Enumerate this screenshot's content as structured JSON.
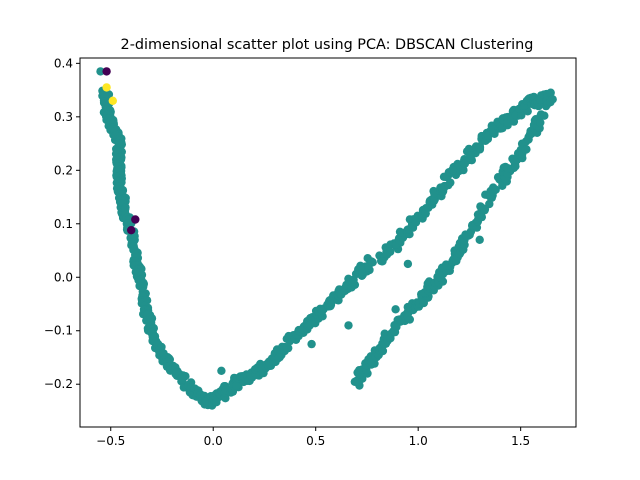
{
  "chart_data": {
    "type": "scatter",
    "title": "2-dimensional scatter plot using PCA: DBSCAN Clustering",
    "xlabel": "",
    "ylabel": "",
    "xlim": [
      -0.65,
      1.77
    ],
    "ylim": [
      -0.28,
      0.41
    ],
    "x_ticks": [
      -0.5,
      0.0,
      0.5,
      1.0,
      1.5
    ],
    "x_tick_labels": [
      "−0.5",
      "0.0",
      "0.5",
      "1.0",
      "1.5"
    ],
    "y_ticks": [
      -0.2,
      -0.1,
      0.0,
      0.1,
      0.2,
      0.3,
      0.4
    ],
    "y_tick_labels": [
      "−0.2",
      "−0.1",
      "0.0",
      "0.1",
      "0.2",
      "0.3",
      "0.4"
    ],
    "grid": false,
    "legend": "none",
    "colors": {
      "cluster_0": "#21918c",
      "cluster_1": "#fde725",
      "noise": "#440154"
    },
    "series": [
      {
        "color": "#21918c",
        "trace": [
          [
            -0.55,
            0.385
          ],
          [
            -0.53,
            0.345
          ],
          [
            -0.52,
            0.33
          ],
          [
            -0.52,
            0.31
          ],
          [
            -0.51,
            0.3
          ],
          [
            -0.49,
            0.285
          ],
          [
            -0.47,
            0.27
          ],
          [
            -0.46,
            0.255
          ],
          [
            -0.46,
            0.24
          ],
          [
            -0.46,
            0.22
          ],
          [
            -0.46,
            0.2
          ],
          [
            -0.46,
            0.18
          ],
          [
            -0.45,
            0.16
          ],
          [
            -0.44,
            0.14
          ],
          [
            -0.43,
            0.12
          ],
          [
            -0.41,
            0.1
          ],
          [
            -0.4,
            0.08
          ],
          [
            -0.38,
            0.05
          ],
          [
            -0.37,
            0.02
          ],
          [
            -0.36,
            0.0
          ],
          [
            -0.34,
            -0.03
          ],
          [
            -0.33,
            -0.06
          ],
          [
            -0.31,
            -0.09
          ],
          [
            -0.28,
            -0.12
          ],
          [
            -0.24,
            -0.15
          ],
          [
            -0.2,
            -0.17
          ],
          [
            -0.15,
            -0.19
          ],
          [
            -0.1,
            -0.21
          ],
          [
            -0.06,
            -0.225
          ],
          [
            -0.02,
            -0.235
          ],
          [
            0.02,
            -0.225
          ],
          [
            0.07,
            -0.21
          ],
          [
            0.12,
            -0.195
          ],
          [
            0.18,
            -0.185
          ],
          [
            0.24,
            -0.17
          ],
          [
            0.3,
            -0.15
          ],
          [
            0.36,
            -0.125
          ],
          [
            0.42,
            -0.1
          ],
          [
            0.48,
            -0.08
          ],
          [
            0.54,
            -0.06
          ],
          [
            0.6,
            -0.04
          ],
          [
            0.66,
            -0.015
          ],
          [
            0.72,
            0.01
          ],
          [
            0.78,
            0.035
          ]
        ],
        "trace2": [
          [
            0.82,
            0.035
          ],
          [
            0.88,
            0.06
          ],
          [
            0.94,
            0.085
          ],
          [
            1.0,
            0.11
          ],
          [
            1.06,
            0.14
          ],
          [
            1.12,
            0.17
          ],
          [
            1.18,
            0.2
          ],
          [
            1.24,
            0.225
          ],
          [
            1.3,
            0.25
          ],
          [
            1.36,
            0.275
          ],
          [
            1.42,
            0.29
          ],
          [
            1.48,
            0.31
          ],
          [
            1.54,
            0.325
          ],
          [
            1.6,
            0.33
          ],
          [
            1.65,
            0.335
          ]
        ],
        "trace3": [
          [
            0.7,
            -0.195
          ],
          [
            0.74,
            -0.17
          ],
          [
            0.78,
            -0.15
          ],
          [
            0.84,
            -0.12
          ],
          [
            0.9,
            -0.09
          ],
          [
            0.96,
            -0.065
          ],
          [
            1.02,
            -0.04
          ],
          [
            1.08,
            -0.01
          ],
          [
            1.14,
            0.02
          ],
          [
            1.2,
            0.05
          ],
          [
            1.26,
            0.09
          ],
          [
            1.32,
            0.13
          ],
          [
            1.38,
            0.17
          ],
          [
            1.44,
            0.2
          ],
          [
            1.5,
            0.23
          ],
          [
            1.56,
            0.27
          ],
          [
            1.61,
            0.3
          ]
        ],
        "isolated": [
          [
            0.04,
            -0.175
          ],
          [
            0.48,
            -0.125
          ],
          [
            0.66,
            -0.09
          ],
          [
            0.95,
            0.025
          ],
          [
            1.3,
            0.07
          ],
          [
            1.17,
            0.2
          ],
          [
            0.89,
            -0.06
          ]
        ]
      },
      {
        "color": "#fde725",
        "points": [
          [
            -0.52,
            0.355
          ],
          [
            -0.49,
            0.33
          ]
        ]
      },
      {
        "color": "#440154",
        "points": [
          [
            -0.52,
            0.385
          ],
          [
            -0.38,
            0.108
          ],
          [
            -0.4,
            0.088
          ]
        ]
      }
    ]
  }
}
